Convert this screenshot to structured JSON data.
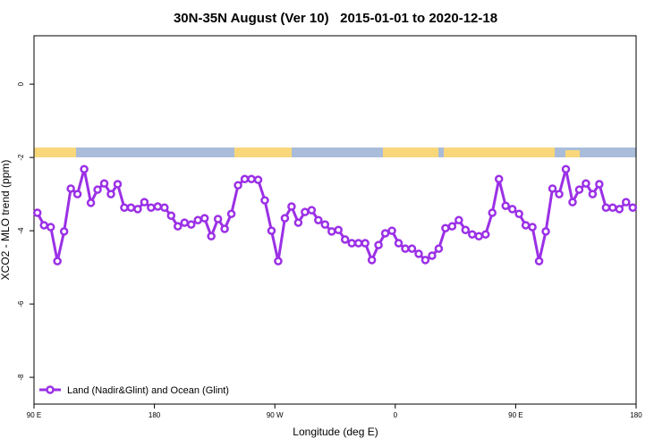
{
  "chart_data": {
    "type": "line",
    "title": "30N-35N August (Ver 10)   2015-01-01 to 2020-12-18",
    "x_label": "Longitude (deg E)",
    "y_label": "XCO2 - MLO trend (ppm)",
    "x": [
      92.5,
      97.5,
      102.5,
      107.5,
      112.5,
      117.5,
      122.5,
      127.5,
      132.5,
      137.5,
      142.5,
      147.5,
      152.5,
      157.5,
      162.5,
      167.5,
      172.5,
      177.5,
      182.5,
      187.5,
      192.5,
      197.5,
      202.5,
      207.5,
      212.5,
      217.5,
      222.5,
      227.5,
      232.5,
      237.5,
      242.5,
      247.5,
      252.5,
      257.5,
      262.5,
      267.5,
      272.5,
      277.5,
      282.5,
      287.5,
      292.5,
      297.5,
      302.5,
      307.5,
      312.5,
      317.5,
      322.5,
      327.5,
      332.5,
      337.5,
      342.5,
      347.5,
      352.5,
      357.5,
      362.5,
      367.5,
      372.5,
      377.5,
      382.5,
      387.5,
      392.5,
      397.5,
      402.5,
      407.5,
      412.5,
      417.5,
      422.5,
      427.5,
      432.5,
      437.5,
      442.5,
      447.5,
      452.5,
      457.5,
      462.5,
      467.5,
      472.5,
      477.5,
      482.5,
      487.5,
      492.5,
      497.5,
      502.5,
      507.5,
      512.5,
      517.5,
      522.5,
      527.5,
      532.5,
      537.5
    ],
    "series": [
      {
        "name": "Land (Nadir&Glint) and Ocean (Glint)",
        "color": "#9b30e6",
        "values": [
          -3.51,
          -3.85,
          -3.9,
          -4.83,
          -4.02,
          -2.85,
          -3.0,
          -2.32,
          -3.24,
          -2.88,
          -2.71,
          -3.0,
          -2.73,
          -3.37,
          -3.37,
          -3.41,
          -3.22,
          -3.37,
          -3.34,
          -3.37,
          -3.59,
          -3.88,
          -3.78,
          -3.83,
          -3.71,
          -3.66,
          -4.15,
          -3.68,
          -3.95,
          -3.54,
          -2.76,
          -2.59,
          -2.59,
          -2.61,
          -3.17,
          -4.0,
          -4.83,
          -3.66,
          -3.34,
          -3.78,
          -3.49,
          -3.44,
          -3.71,
          -3.83,
          -4.02,
          -3.98,
          -4.24,
          -4.34,
          -4.34,
          -4.34,
          -4.8,
          -4.39,
          -4.07,
          -4.0,
          -4.34,
          -4.49,
          -4.49,
          -4.63,
          -4.8,
          -4.68,
          -4.49,
          -3.93,
          -3.88,
          -3.71,
          -3.98,
          -4.1,
          -4.15,
          -4.1,
          -3.51,
          -2.59,
          -3.32,
          -3.41,
          -3.54,
          -3.85,
          -3.9,
          -4.83,
          -4.02,
          -2.85,
          -3.0,
          -2.32,
          -3.22,
          -2.88,
          -2.71,
          -3.0,
          -2.73,
          -3.37,
          -3.37,
          -3.41,
          -3.22,
          -3.37
        ]
      }
    ],
    "xlim": [
      90,
      540
    ],
    "xticks": [
      {
        "value": 90,
        "label": "90 E"
      },
      180,
      {
        "value": 270,
        "label": "90 W"
      },
      {
        "value": 360,
        "label": "0"
      },
      {
        "value": 450,
        "label": "90 E"
      },
      {
        "value": 540,
        "label": "180"
      }
    ],
    "ylim": [
      -8.73,
      1.32
    ],
    "yticks": [
      0,
      -2,
      -4,
      -6,
      -8
    ],
    "legend": "bottom-left"
  }
}
